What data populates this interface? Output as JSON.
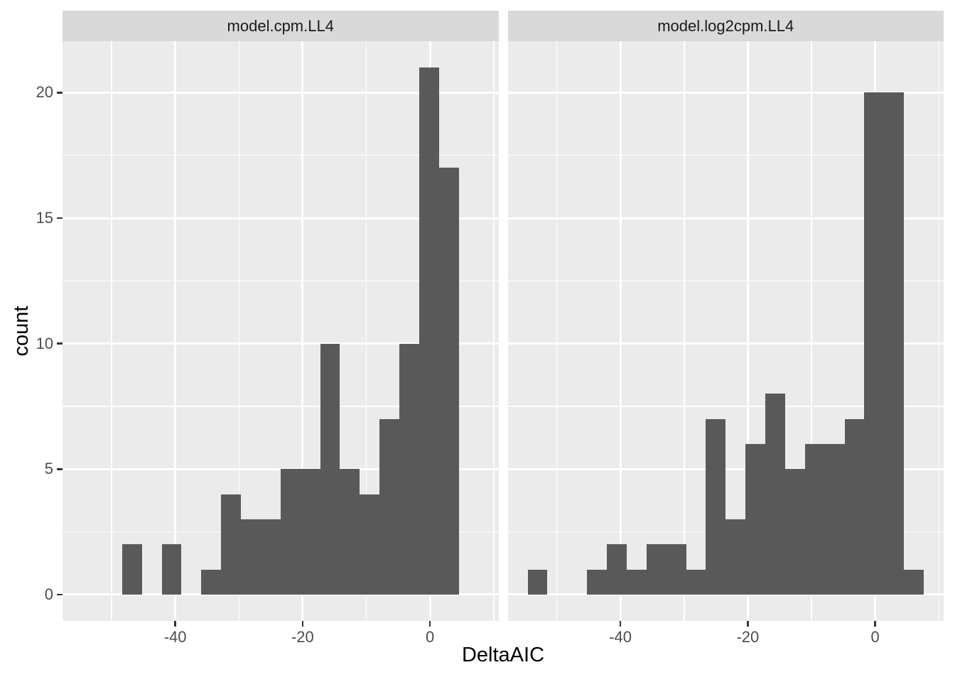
{
  "chart_data": {
    "type": "bar",
    "subtype": "histogram",
    "title": "",
    "xlabel": "DeltaAIC",
    "ylabel": "count",
    "facets": [
      {
        "label": "model.cpm.LL4",
        "counts": [
          0,
          0,
          2,
          0,
          2,
          0,
          1,
          4,
          3,
          3,
          5,
          5,
          10,
          5,
          4,
          7,
          10,
          21,
          17,
          0
        ]
      },
      {
        "label": "model.log2cpm.LL4",
        "counts": [
          1,
          0,
          0,
          1,
          2,
          1,
          2,
          2,
          1,
          7,
          3,
          6,
          8,
          5,
          6,
          6,
          7,
          20,
          20,
          1
        ]
      }
    ],
    "bin_left_edges": [
      -54.57,
      -51.46,
      -48.35,
      -45.24,
      -42.13,
      -39.02,
      -35.91,
      -32.8,
      -29.69,
      -26.58,
      -23.47,
      -20.36,
      -17.25,
      -14.14,
      -11.03,
      -7.92,
      -4.81,
      -1.7,
      1.41,
      4.52
    ],
    "binwidth": 3.11,
    "x_ticks": [
      -40,
      -20,
      0
    ],
    "x_minor_gridlines": [
      -50,
      -30,
      -10,
      10
    ],
    "y_ticks": [
      0,
      5,
      10,
      15,
      20
    ],
    "y_minor_gridlines": [
      2.5,
      7.5,
      12.5,
      17.5
    ],
    "xlim": [
      -57.7,
      10.75
    ],
    "ylim": [
      -1.05,
      22.05
    ],
    "grid": "on",
    "legend": "none"
  },
  "colors": {
    "panel_background": "#EBEBEB",
    "strip_background": "#D9D9D9",
    "bar_fill": "#595959",
    "gridline": "#FFFFFF",
    "axis_text": "#4D4D4D",
    "strip_text": "#1A1A1A",
    "axis_title_text": "#000000",
    "tick_mark": "#333333",
    "figure_background": "#FFFFFF"
  }
}
